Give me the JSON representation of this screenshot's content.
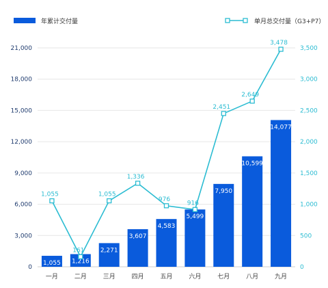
{
  "chart_data": {
    "type": "bar",
    "categories": [
      "一月",
      "二月",
      "三月",
      "四月",
      "五月",
      "六月",
      "七月",
      "八月",
      "九月"
    ],
    "series": [
      {
        "name": "年累计交付量",
        "type": "bar",
        "axis": "left",
        "values": [
          1055,
          1216,
          2271,
          3607,
          4583,
          5499,
          7950,
          10599,
          14077
        ],
        "labels": [
          "1,055",
          "1,216",
          "2,271",
          "3,607",
          "4,583",
          "5,499",
          "7,950",
          "10,599",
          "14,077"
        ]
      },
      {
        "name": "单月总交付量（G3+P7）",
        "type": "line",
        "axis": "right",
        "values": [
          1055,
          161,
          1055,
          1336,
          976,
          916,
          2451,
          2649,
          3478
        ],
        "labels": [
          "1,055",
          "161",
          "1,055",
          "1,336",
          "976",
          "916",
          "2,451",
          "2,649",
          "3,478"
        ]
      }
    ],
    "y_left": {
      "ylim": [
        0,
        21000
      ],
      "ticks": [
        "0",
        "3,000",
        "6,000",
        "9,000",
        "12,000",
        "15,000",
        "18,000",
        "21,000"
      ]
    },
    "y_right": {
      "ylim": [
        0,
        3500
      ],
      "ticks": [
        "0",
        "500",
        "1,000",
        "1,500",
        "2,000",
        "2,500",
        "3,000",
        "3,500"
      ]
    },
    "grid": true,
    "legend_position": "top",
    "colors": {
      "bar": "#0a5bdc",
      "line": "#2bbcd2",
      "left_axis_text": "#1f3b6e",
      "right_axis_text": "#2bbcd2"
    }
  }
}
